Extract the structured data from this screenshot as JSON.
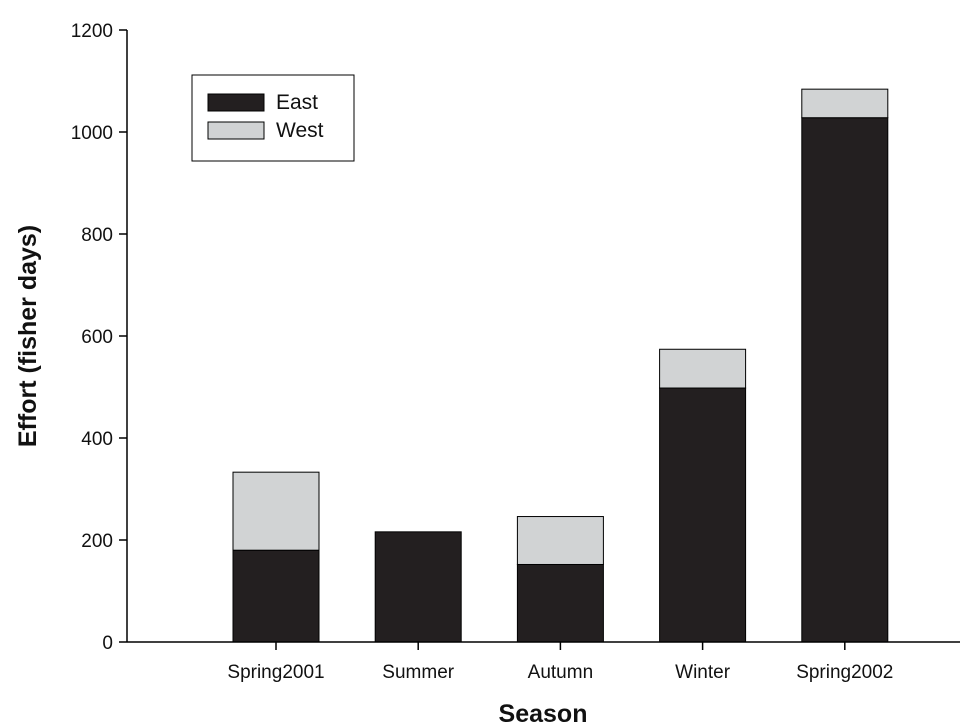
{
  "chart_data": {
    "type": "bar",
    "stacked": true,
    "title": "",
    "xlabel": "Season",
    "ylabel": "Effort (fisher days)",
    "categories": [
      "Spring2001",
      "Summer",
      "Autumn",
      "Winter",
      "Spring2002"
    ],
    "series": [
      {
        "name": "East",
        "values": [
          180,
          216,
          152,
          498,
          1028
        ],
        "color": "#231f20"
      },
      {
        "name": "West",
        "values": [
          153,
          0,
          94,
          76,
          56
        ],
        "color": "#d1d3d4"
      }
    ],
    "ylim": [
      0,
      1200
    ],
    "yticks": [
      0,
      200,
      400,
      600,
      800,
      1000,
      1200
    ],
    "grid": false,
    "legend_position": "top-left"
  }
}
